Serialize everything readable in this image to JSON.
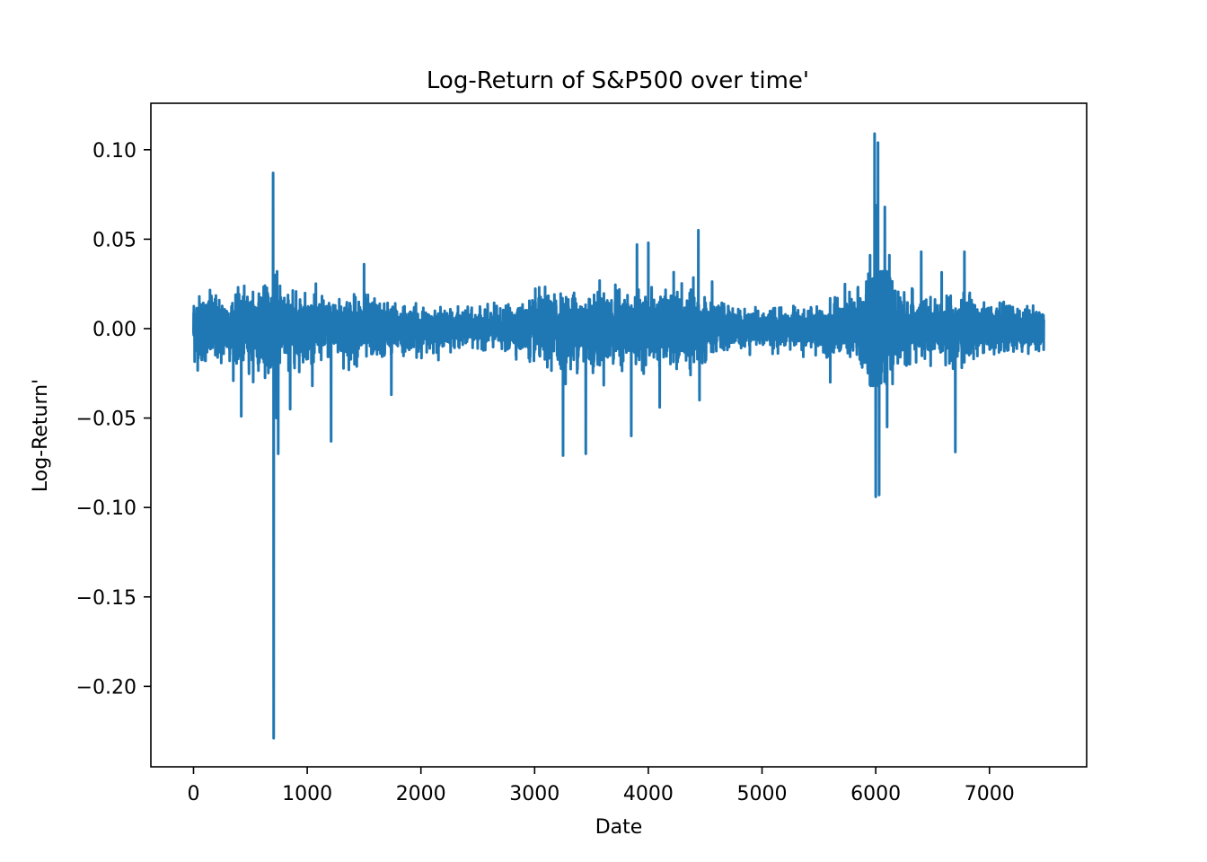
{
  "chart_data": {
    "type": "line",
    "title": "Log-Return of S&P500 over time'",
    "xlabel": "Date",
    "ylabel": "Log-Return'",
    "xlim": [
      -375,
      7855
    ],
    "ylim": [
      -0.245,
      0.126
    ],
    "grid": false,
    "line_color": "#1f77b4",
    "x_ticks": [
      {
        "value": 0,
        "label": "0"
      },
      {
        "value": 1000,
        "label": "1000"
      },
      {
        "value": 2000,
        "label": "2000"
      },
      {
        "value": 3000,
        "label": "3000"
      },
      {
        "value": 4000,
        "label": "4000"
      },
      {
        "value": 5000,
        "label": "5000"
      },
      {
        "value": 6000,
        "label": "6000"
      },
      {
        "value": 7000,
        "label": "7000"
      }
    ],
    "y_ticks": [
      {
        "value": 0.1,
        "label": "0.10"
      },
      {
        "value": 0.05,
        "label": "0.05"
      },
      {
        "value": 0.0,
        "label": "0.00"
      },
      {
        "value": -0.05,
        "label": "−0.05"
      },
      {
        "value": -0.1,
        "label": "−0.10"
      },
      {
        "value": -0.15,
        "label": "−0.15"
      },
      {
        "value": -0.2,
        "label": "−0.20"
      }
    ],
    "series": [
      {
        "n_points": 7480,
        "volatility_profile": [
          [
            0,
            0.012
          ],
          [
            300,
            0.011
          ],
          [
            600,
            0.012
          ],
          [
            700,
            0.02
          ],
          [
            800,
            0.012
          ],
          [
            1200,
            0.01
          ],
          [
            1500,
            0.011
          ],
          [
            1800,
            0.008
          ],
          [
            2200,
            0.006
          ],
          [
            2500,
            0.006
          ],
          [
            2800,
            0.007
          ],
          [
            3100,
            0.012
          ],
          [
            3500,
            0.013
          ],
          [
            3900,
            0.011
          ],
          [
            4300,
            0.012
          ],
          [
            4500,
            0.011
          ],
          [
            4700,
            0.007
          ],
          [
            5000,
            0.006
          ],
          [
            5500,
            0.007
          ],
          [
            5800,
            0.011
          ],
          [
            5950,
            0.02
          ],
          [
            6050,
            0.02
          ],
          [
            6200,
            0.012
          ],
          [
            6500,
            0.009
          ],
          [
            6700,
            0.011
          ],
          [
            7000,
            0.008
          ],
          [
            7480,
            0.007
          ]
        ],
        "spikes": [
          [
            700,
            0.087
          ],
          [
            705,
            -0.229
          ],
          [
            720,
            0.03
          ],
          [
            730,
            -0.05
          ],
          [
            745,
            -0.07
          ],
          [
            850,
            -0.045
          ],
          [
            1210,
            -0.063
          ],
          [
            1500,
            0.036
          ],
          [
            1740,
            -0.037
          ],
          [
            420,
            -0.049
          ],
          [
            3250,
            0.049
          ],
          [
            3250,
            -0.071
          ],
          [
            3450,
            0.049
          ],
          [
            3450,
            -0.07
          ],
          [
            3850,
            -0.06
          ],
          [
            3900,
            0.047
          ],
          [
            4000,
            0.048
          ],
          [
            4100,
            -0.044
          ],
          [
            4440,
            0.055
          ],
          [
            4450,
            -0.04
          ],
          [
            5990,
            0.109
          ],
          [
            6000,
            -0.094
          ],
          [
            6020,
            0.104
          ],
          [
            6030,
            -0.093
          ],
          [
            6080,
            0.068
          ],
          [
            6010,
            0.069
          ],
          [
            5950,
            0.041
          ],
          [
            6100,
            -0.055
          ],
          [
            6400,
            0.043
          ],
          [
            6700,
            0.046
          ],
          [
            6700,
            -0.069
          ],
          [
            6780,
            0.043
          ],
          [
            5600,
            -0.03
          ],
          [
            6120,
            0.041
          ]
        ]
      }
    ]
  }
}
